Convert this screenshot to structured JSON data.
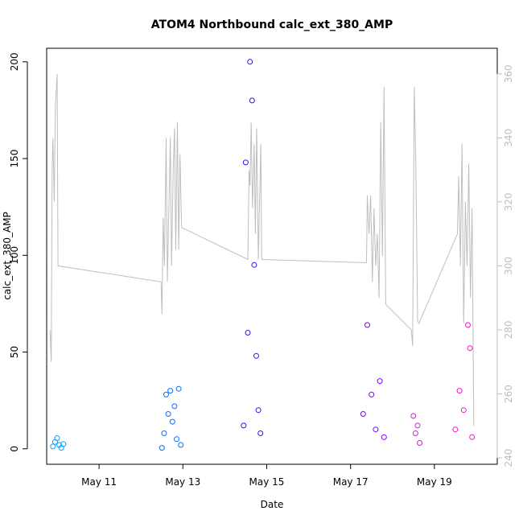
{
  "chart_data": {
    "type": "scatter",
    "title": "ATOM4 Northbound calc_ext_380_AMP",
    "xlabel": "Date",
    "ylabel": "calc_ext_380_AMP",
    "x_unit": "days (May)",
    "xlim": [
      9.75,
      20.5
    ],
    "ylim": [
      -8,
      207
    ],
    "y_ticks": [
      0,
      50,
      100,
      150,
      200
    ],
    "x_ticks": [
      {
        "value": 11,
        "label": "May 11"
      },
      {
        "value": 13,
        "label": "May 13"
      },
      {
        "value": 15,
        "label": "May 15"
      },
      {
        "value": 17,
        "label": "May 17"
      },
      {
        "value": 19,
        "label": "May 19"
      }
    ],
    "y2lim": [
      238,
      368
    ],
    "y2_ticks": [
      240,
      260,
      280,
      300,
      320,
      340,
      360
    ],
    "secondary_color": "#bebebe",
    "primary_points": [
      {
        "x": 9.9,
        "y": 1.2,
        "color": "#00a2ff"
      },
      {
        "x": 9.95,
        "y": 3.5,
        "color": "#00a2ff"
      },
      {
        "x": 10.0,
        "y": 5.5,
        "color": "#00a2ff"
      },
      {
        "x": 10.05,
        "y": 2.0,
        "color": "#00a2ff"
      },
      {
        "x": 10.1,
        "y": 0.5,
        "color": "#00a2ff"
      },
      {
        "x": 10.15,
        "y": 2.5,
        "color": "#00a2ff"
      },
      {
        "x": 12.5,
        "y": 0.5,
        "color": "#0b6dff"
      },
      {
        "x": 12.55,
        "y": 8.0,
        "color": "#0b6dff"
      },
      {
        "x": 12.6,
        "y": 28.0,
        "color": "#0b6dff"
      },
      {
        "x": 12.65,
        "y": 18.0,
        "color": "#0b6dff"
      },
      {
        "x": 12.7,
        "y": 30.0,
        "color": "#0b6dff"
      },
      {
        "x": 12.75,
        "y": 14.0,
        "color": "#0b6dff"
      },
      {
        "x": 12.8,
        "y": 22.0,
        "color": "#0b6dff"
      },
      {
        "x": 12.85,
        "y": 5.0,
        "color": "#0b6dff"
      },
      {
        "x": 12.9,
        "y": 31.0,
        "color": "#0b6dff"
      },
      {
        "x": 12.95,
        "y": 2.0,
        "color": "#0b6dff"
      },
      {
        "x": 14.45,
        "y": 12.0,
        "color": "#3b0cf0"
      },
      {
        "x": 14.5,
        "y": 148.0,
        "color": "#3b0cf0"
      },
      {
        "x": 14.55,
        "y": 60.0,
        "color": "#3b0cf0"
      },
      {
        "x": 14.6,
        "y": 200.0,
        "color": "#3b0cf0"
      },
      {
        "x": 14.65,
        "y": 180.0,
        "color": "#3b0cf0"
      },
      {
        "x": 14.7,
        "y": 95.0,
        "color": "#3b0cf0"
      },
      {
        "x": 14.75,
        "y": 48.0,
        "color": "#3b0cf0"
      },
      {
        "x": 14.8,
        "y": 20.0,
        "color": "#3b0cf0"
      },
      {
        "x": 14.85,
        "y": 8.0,
        "color": "#3b0cf0"
      },
      {
        "x": 17.3,
        "y": 18.0,
        "color": "#8000ff"
      },
      {
        "x": 17.4,
        "y": 64.0,
        "color": "#8000ff"
      },
      {
        "x": 17.5,
        "y": 28.0,
        "color": "#8000ff"
      },
      {
        "x": 17.6,
        "y": 10.0,
        "color": "#8000ff"
      },
      {
        "x": 17.7,
        "y": 35.0,
        "color": "#8000ff"
      },
      {
        "x": 17.8,
        "y": 6.0,
        "color": "#8000ff"
      },
      {
        "x": 18.5,
        "y": 17.0,
        "color": "#d61de0"
      },
      {
        "x": 18.55,
        "y": 8.0,
        "color": "#d61de0"
      },
      {
        "x": 18.6,
        "y": 12.0,
        "color": "#d61de0"
      },
      {
        "x": 18.65,
        "y": 3.0,
        "color": "#d61de0"
      },
      {
        "x": 19.5,
        "y": 10.0,
        "color": "#ff10c8"
      },
      {
        "x": 19.6,
        "y": 30.0,
        "color": "#ff10c8"
      },
      {
        "x": 19.7,
        "y": 20.0,
        "color": "#ff10c8"
      },
      {
        "x": 19.8,
        "y": 64.0,
        "color": "#ff10c8"
      },
      {
        "x": 19.85,
        "y": 52.0,
        "color": "#ff10c8"
      },
      {
        "x": 19.9,
        "y": 6.0,
        "color": "#ff10c8"
      }
    ],
    "secondary_line": {
      "x": [
        9.83,
        9.86,
        9.88,
        9.9,
        9.93,
        9.96,
        10.0,
        10.02,
        12.48,
        12.5,
        12.53,
        12.56,
        12.6,
        12.63,
        12.67,
        12.7,
        12.73,
        12.77,
        12.8,
        12.83,
        12.87,
        12.9,
        12.93,
        12.97,
        14.55,
        14.58,
        14.6,
        14.63,
        14.66,
        14.7,
        14.73,
        14.76,
        14.8,
        14.83,
        14.86,
        14.88,
        17.38,
        17.4,
        17.44,
        17.48,
        17.52,
        17.56,
        17.6,
        17.64,
        17.68,
        17.72,
        17.76,
        17.8,
        17.84,
        18.45,
        18.48,
        18.52,
        18.56,
        18.6,
        18.63,
        19.55,
        19.58,
        19.62,
        19.66,
        19.7,
        19.74,
        19.78,
        19.82,
        19.86,
        19.9,
        19.94
      ],
      "y": [
        280,
        270,
        330,
        340,
        320,
        350,
        360,
        300,
        295,
        285,
        315,
        300,
        340,
        295,
        320,
        340,
        300,
        330,
        343,
        305,
        345,
        305,
        335,
        312,
        302,
        330,
        325,
        345,
        318,
        338,
        310,
        343,
        302,
        320,
        338,
        302,
        301,
        322,
        310,
        322,
        295,
        318,
        300,
        310,
        290,
        345,
        303,
        356,
        288,
        280,
        275,
        356,
        330,
        283,
        282,
        310,
        328,
        300,
        338,
        282,
        320,
        300,
        332,
        290,
        318,
        250
      ]
    }
  }
}
